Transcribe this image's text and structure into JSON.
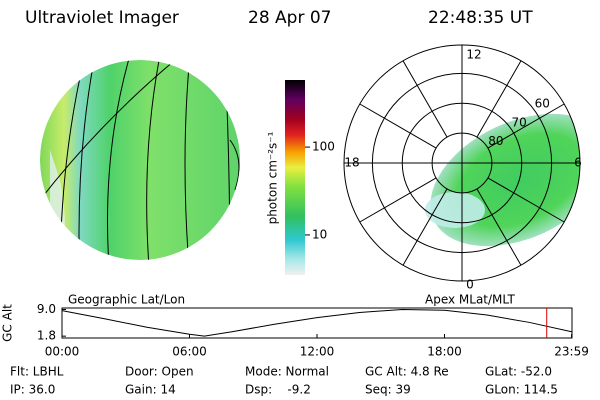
{
  "header": {
    "title": "Ultraviolet Imager",
    "date": "28 Apr 07",
    "time": "22:48:35 UT"
  },
  "colorbar": {
    "label": "photon cm⁻²s⁻¹",
    "lim": [
      3.5,
      580
    ],
    "ticks": [
      10,
      100
    ],
    "log": true
  },
  "polar": {
    "mlt_labels": [
      "12",
      "18",
      "6",
      "0"
    ],
    "lat_rings": [
      80,
      70,
      60
    ],
    "lat_lim": [
      90,
      50.5
    ]
  },
  "map_labels": {
    "left": "Geographic Lat/Lon",
    "right": "Apex MLat/MLT"
  },
  "chart_data": {
    "type": "line",
    "ylabel": "GC Alt",
    "x": [
      0,
      2,
      4,
      6,
      6.7,
      8,
      10,
      12,
      14,
      16,
      18,
      20,
      22,
      23.98
    ],
    "values": [
      8.7,
      6.5,
      4.2,
      2.3,
      1.8,
      3.0,
      5.0,
      6.8,
      8.2,
      9.0,
      8.8,
      7.5,
      5.5,
      3.0
    ],
    "color": "#000000",
    "xlim": [
      0,
      24
    ],
    "xticks": [
      {
        "value": 0,
        "label": "00:00"
      },
      {
        "value": 6,
        "label": "06:00"
      },
      {
        "value": 12,
        "label": "12:00"
      },
      {
        "value": 18,
        "label": "18:00"
      },
      {
        "value": 23.98,
        "label": "23:59"
      }
    ],
    "ylim": [
      1.3,
      9.4
    ],
    "yticks": [
      {
        "value": 9,
        "label": "9.0"
      },
      1.8
    ],
    "marker": {
      "x": 22.81,
      "color": "#e00000"
    }
  },
  "info": [
    [
      "Flt: LBHL",
      "Door: Open",
      "Mode: Normal",
      "GC Alt: 4.8 Re",
      "GLat: -52.0"
    ],
    [
      "IP: 36.0",
      "Gain: 14",
      "Dsp:    -9.2",
      "Seq: 39",
      "GLon: 114.5"
    ]
  ]
}
